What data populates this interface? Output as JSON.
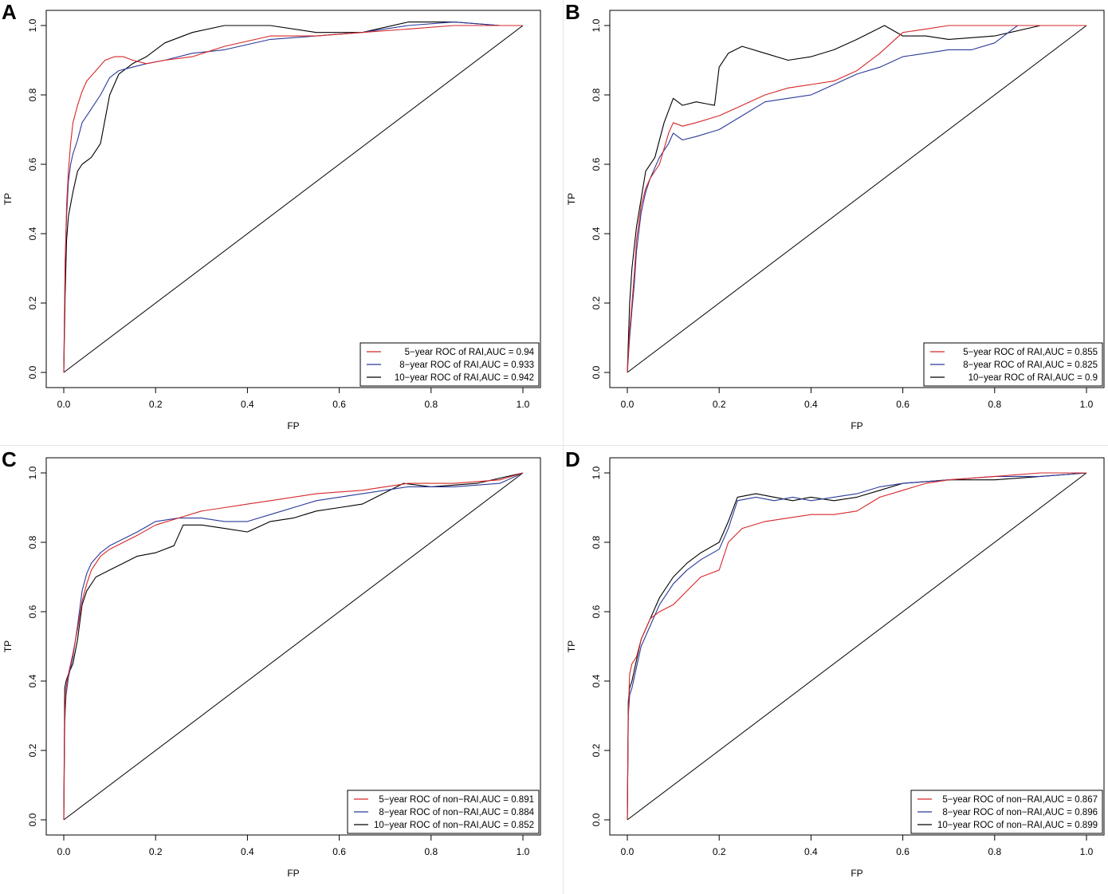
{
  "colors": {
    "5yr": "#d62728",
    "8yr": "#2b3a9a",
    "10yr": "#000000",
    "axis": "#000000"
  },
  "chart_data": [
    {
      "panel": "A",
      "type": "line",
      "xlabel": "FP",
      "ylabel": "TP",
      "xlim": [
        0,
        1
      ],
      "ylim": [
        0,
        1
      ],
      "xticks": [
        "0.0",
        "0.2",
        "0.4",
        "0.6",
        "0.8",
        "1.0"
      ],
      "yticks": [
        "0.0",
        "0.2",
        "0.4",
        "0.6",
        "0.8",
        "1.0"
      ],
      "legend_position": "bottom-right",
      "diagonal": true,
      "series": [
        {
          "key": "5yr",
          "name": "5−year ROC of RAI,AUC = 0.94",
          "x": [
            0,
            0.003,
            0.006,
            0.01,
            0.015,
            0.02,
            0.03,
            0.04,
            0.05,
            0.07,
            0.09,
            0.11,
            0.13,
            0.15,
            0.18,
            0.22,
            0.28,
            0.35,
            0.45,
            0.55,
            0.65,
            0.75,
            0.85,
            0.95,
            1
          ],
          "y": [
            0,
            0.3,
            0.48,
            0.58,
            0.66,
            0.72,
            0.77,
            0.81,
            0.84,
            0.87,
            0.9,
            0.91,
            0.91,
            0.9,
            0.89,
            0.9,
            0.91,
            0.94,
            0.97,
            0.97,
            0.98,
            0.99,
            1.0,
            1.0,
            1.0
          ]
        },
        {
          "key": "8yr",
          "name": "8−year ROC of RAI,AUC = 0.933",
          "x": [
            0,
            0.003,
            0.006,
            0.01,
            0.015,
            0.02,
            0.03,
            0.04,
            0.06,
            0.08,
            0.1,
            0.12,
            0.15,
            0.18,
            0.22,
            0.28,
            0.35,
            0.45,
            0.55,
            0.65,
            0.75,
            0.85,
            0.95,
            1
          ],
          "y": [
            0,
            0.32,
            0.45,
            0.55,
            0.6,
            0.63,
            0.67,
            0.72,
            0.76,
            0.8,
            0.85,
            0.87,
            0.88,
            0.89,
            0.9,
            0.92,
            0.93,
            0.96,
            0.97,
            0.98,
            1.0,
            1.01,
            1.0,
            1.0
          ]
        },
        {
          "key": "10yr",
          "name": "10−year ROC of RAI,AUC = 0.942",
          "x": [
            0,
            0.003,
            0.006,
            0.01,
            0.02,
            0.03,
            0.04,
            0.06,
            0.08,
            0.1,
            0.12,
            0.15,
            0.18,
            0.22,
            0.28,
            0.35,
            0.45,
            0.55,
            0.65,
            0.75,
            0.85,
            0.95,
            1
          ],
          "y": [
            0,
            0.22,
            0.38,
            0.45,
            0.52,
            0.58,
            0.6,
            0.62,
            0.66,
            0.8,
            0.86,
            0.89,
            0.91,
            0.95,
            0.98,
            1.0,
            1.0,
            0.98,
            0.98,
            1.01,
            1.01,
            1.0,
            1.0
          ]
        }
      ]
    },
    {
      "panel": "B",
      "type": "line",
      "xlabel": "FP",
      "ylabel": "TP",
      "xlim": [
        0,
        1
      ],
      "ylim": [
        0,
        1
      ],
      "xticks": [
        "0.0",
        "0.2",
        "0.4",
        "0.6",
        "0.8",
        "1.0"
      ],
      "yticks": [
        "0.0",
        "0.2",
        "0.4",
        "0.6",
        "0.8",
        "1.0"
      ],
      "legend_position": "bottom-right",
      "diagonal": true,
      "series": [
        {
          "key": "5yr",
          "name": "5−year ROC of RAI,AUC = 0.855",
          "x": [
            0,
            0.005,
            0.01,
            0.015,
            0.02,
            0.03,
            0.04,
            0.05,
            0.07,
            0.09,
            0.1,
            0.12,
            0.15,
            0.2,
            0.25,
            0.3,
            0.35,
            0.4,
            0.45,
            0.5,
            0.55,
            0.6,
            0.65,
            0.7,
            0.8,
            0.9,
            1
          ],
          "y": [
            0,
            0.12,
            0.2,
            0.28,
            0.38,
            0.48,
            0.53,
            0.56,
            0.6,
            0.69,
            0.72,
            0.71,
            0.72,
            0.74,
            0.77,
            0.8,
            0.82,
            0.83,
            0.84,
            0.87,
            0.92,
            0.98,
            0.99,
            1.0,
            1.0,
            1.0,
            1.0
          ]
        },
        {
          "key": "8yr",
          "name": "8−year ROC of RAI,AUC = 0.825",
          "x": [
            0,
            0.005,
            0.01,
            0.015,
            0.02,
            0.03,
            0.04,
            0.05,
            0.07,
            0.09,
            0.1,
            0.12,
            0.15,
            0.2,
            0.25,
            0.3,
            0.35,
            0.4,
            0.45,
            0.5,
            0.55,
            0.6,
            0.7,
            0.75,
            0.8,
            0.85,
            0.9,
            1
          ],
          "y": [
            0,
            0.1,
            0.18,
            0.25,
            0.35,
            0.46,
            0.52,
            0.56,
            0.62,
            0.66,
            0.69,
            0.67,
            0.68,
            0.7,
            0.74,
            0.78,
            0.79,
            0.8,
            0.83,
            0.86,
            0.88,
            0.91,
            0.93,
            0.93,
            0.95,
            1.0,
            1.0,
            1.0
          ]
        },
        {
          "key": "10yr",
          "name": "10−year ROC of RAI,AUC = 0.9",
          "x": [
            0,
            0.005,
            0.01,
            0.02,
            0.03,
            0.04,
            0.06,
            0.08,
            0.1,
            0.12,
            0.15,
            0.19,
            0.2,
            0.22,
            0.25,
            0.3,
            0.35,
            0.4,
            0.45,
            0.5,
            0.56,
            0.6,
            0.65,
            0.7,
            0.8,
            0.9,
            1
          ],
          "y": [
            0,
            0.2,
            0.3,
            0.42,
            0.5,
            0.58,
            0.62,
            0.72,
            0.79,
            0.77,
            0.78,
            0.77,
            0.88,
            0.92,
            0.94,
            0.92,
            0.9,
            0.91,
            0.93,
            0.96,
            1.0,
            0.97,
            0.97,
            0.96,
            0.97,
            1.0,
            1.0
          ]
        }
      ]
    },
    {
      "panel": "C",
      "type": "line",
      "xlabel": "FP",
      "ylabel": "TP",
      "xlim": [
        0,
        1
      ],
      "ylim": [
        0,
        1
      ],
      "xticks": [
        "0.0",
        "0.2",
        "0.4",
        "0.6",
        "0.8",
        "1.0"
      ],
      "yticks": [
        "0.0",
        "0.2",
        "0.4",
        "0.6",
        "0.8",
        "1.0"
      ],
      "legend_position": "bottom-right",
      "diagonal": true,
      "series": [
        {
          "key": "5yr",
          "name": "5−year ROC of non−RAI,AUC = 0.891",
          "x": [
            0,
            0.002,
            0.005,
            0.01,
            0.02,
            0.03,
            0.04,
            0.05,
            0.06,
            0.08,
            0.1,
            0.13,
            0.16,
            0.2,
            0.25,
            0.3,
            0.35,
            0.4,
            0.45,
            0.55,
            0.65,
            0.75,
            0.85,
            0.95,
            1
          ],
          "y": [
            0,
            0.3,
            0.38,
            0.42,
            0.48,
            0.55,
            0.63,
            0.68,
            0.72,
            0.76,
            0.78,
            0.8,
            0.82,
            0.85,
            0.87,
            0.89,
            0.9,
            0.91,
            0.92,
            0.94,
            0.95,
            0.97,
            0.97,
            0.98,
            1.0
          ]
        },
        {
          "key": "8yr",
          "name": "8−year ROC of non−RAI,AUC = 0.884",
          "x": [
            0,
            0.002,
            0.005,
            0.01,
            0.02,
            0.03,
            0.04,
            0.05,
            0.06,
            0.08,
            0.1,
            0.13,
            0.16,
            0.2,
            0.25,
            0.3,
            0.35,
            0.4,
            0.45,
            0.55,
            0.65,
            0.75,
            0.85,
            0.95,
            1
          ],
          "y": [
            0,
            0.28,
            0.36,
            0.41,
            0.47,
            0.56,
            0.66,
            0.71,
            0.74,
            0.77,
            0.79,
            0.81,
            0.83,
            0.86,
            0.87,
            0.87,
            0.86,
            0.86,
            0.88,
            0.92,
            0.94,
            0.96,
            0.96,
            0.97,
            1.0
          ]
        },
        {
          "key": "10yr",
          "name": "10−year ROC of non−RAI,AUC = 0.852",
          "x": [
            0,
            0.002,
            0.005,
            0.01,
            0.02,
            0.03,
            0.04,
            0.05,
            0.07,
            0.1,
            0.13,
            0.16,
            0.2,
            0.24,
            0.26,
            0.3,
            0.35,
            0.4,
            0.45,
            0.5,
            0.55,
            0.6,
            0.65,
            0.74,
            0.8,
            0.9,
            1
          ],
          "y": [
            0,
            0.38,
            0.4,
            0.42,
            0.45,
            0.52,
            0.62,
            0.66,
            0.7,
            0.72,
            0.74,
            0.76,
            0.77,
            0.79,
            0.85,
            0.85,
            0.84,
            0.83,
            0.86,
            0.87,
            0.89,
            0.9,
            0.91,
            0.97,
            0.96,
            0.97,
            1.0
          ]
        }
      ]
    },
    {
      "panel": "D",
      "type": "line",
      "xlabel": "FP",
      "ylabel": "TP",
      "xlim": [
        0,
        1
      ],
      "ylim": [
        0,
        1
      ],
      "xticks": [
        "0.0",
        "0.2",
        "0.4",
        "0.6",
        "0.8",
        "1.0"
      ],
      "yticks": [
        "0.0",
        "0.2",
        "0.4",
        "0.6",
        "0.8",
        "1.0"
      ],
      "legend_position": "bottom-right",
      "diagonal": true,
      "series": [
        {
          "key": "5yr",
          "name": "5−year ROC of non−RAI,AUC = 0.867",
          "x": [
            0,
            0.002,
            0.005,
            0.01,
            0.02,
            0.03,
            0.05,
            0.07,
            0.1,
            0.13,
            0.16,
            0.2,
            0.22,
            0.25,
            0.3,
            0.35,
            0.4,
            0.45,
            0.5,
            0.55,
            0.6,
            0.65,
            0.7,
            0.8,
            0.9,
            1
          ],
          "y": [
            0,
            0.3,
            0.42,
            0.45,
            0.47,
            0.52,
            0.58,
            0.6,
            0.62,
            0.66,
            0.7,
            0.72,
            0.8,
            0.84,
            0.86,
            0.87,
            0.88,
            0.88,
            0.89,
            0.93,
            0.95,
            0.97,
            0.98,
            0.99,
            1.0,
            1.0
          ]
        },
        {
          "key": "8yr",
          "name": "8−year ROC of non−RAI,AUC = 0.896",
          "x": [
            0,
            0.002,
            0.005,
            0.01,
            0.02,
            0.03,
            0.05,
            0.07,
            0.1,
            0.13,
            0.16,
            0.2,
            0.22,
            0.24,
            0.28,
            0.32,
            0.36,
            0.4,
            0.45,
            0.5,
            0.55,
            0.6,
            0.7,
            0.8,
            0.9,
            1
          ],
          "y": [
            0,
            0.3,
            0.36,
            0.38,
            0.44,
            0.5,
            0.56,
            0.62,
            0.68,
            0.72,
            0.75,
            0.78,
            0.84,
            0.92,
            0.93,
            0.92,
            0.93,
            0.92,
            0.93,
            0.94,
            0.96,
            0.97,
            0.98,
            0.99,
            0.99,
            1.0
          ]
        },
        {
          "key": "10yr",
          "name": "10−year ROC of non−RAI,AUC = 0.899",
          "x": [
            0,
            0.002,
            0.005,
            0.01,
            0.02,
            0.03,
            0.05,
            0.07,
            0.1,
            0.13,
            0.16,
            0.2,
            0.22,
            0.24,
            0.28,
            0.32,
            0.36,
            0.4,
            0.45,
            0.5,
            0.55,
            0.6,
            0.7,
            0.8,
            0.9,
            1
          ],
          "y": [
            0,
            0.34,
            0.38,
            0.4,
            0.46,
            0.52,
            0.58,
            0.64,
            0.7,
            0.74,
            0.77,
            0.8,
            0.86,
            0.93,
            0.94,
            0.93,
            0.92,
            0.93,
            0.92,
            0.93,
            0.95,
            0.97,
            0.98,
            0.98,
            0.99,
            1.0
          ]
        }
      ]
    }
  ]
}
